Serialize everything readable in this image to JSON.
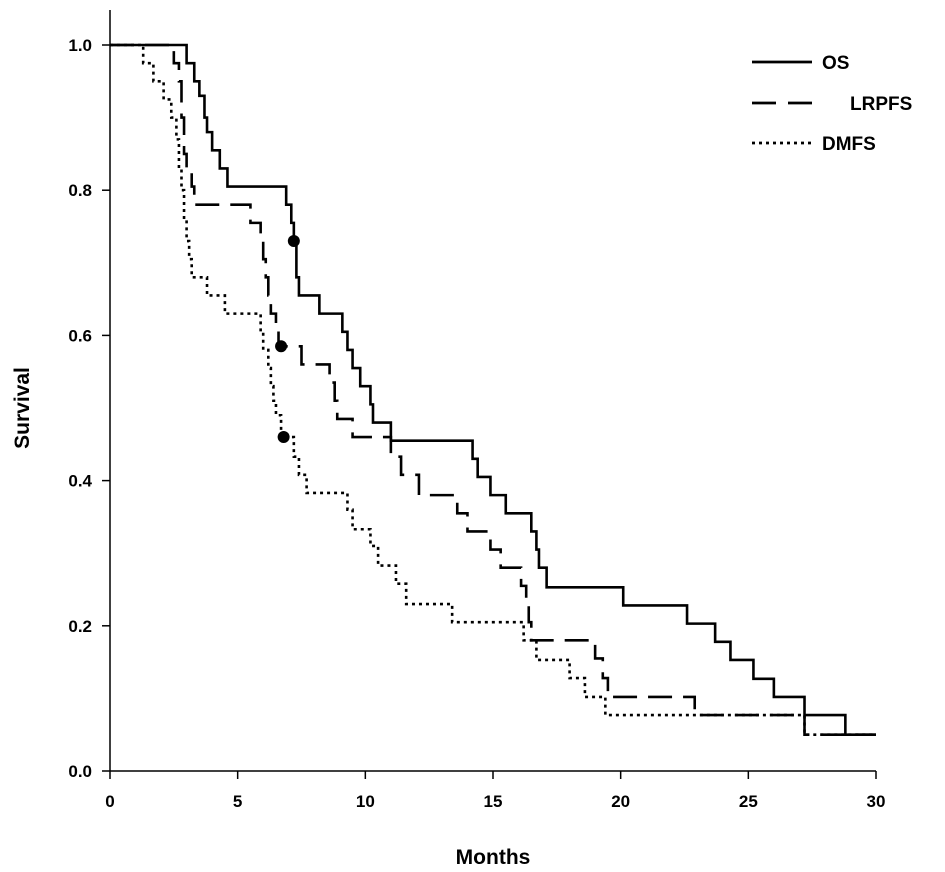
{
  "chart_data": {
    "type": "line",
    "subtype": "kaplan-meier step",
    "title": "",
    "xlabel": "Months",
    "ylabel": "Survival",
    "xlim": [
      0,
      30
    ],
    "ylim": [
      0,
      1
    ],
    "x_ticks": [
      "0",
      "5",
      "10",
      "15",
      "20",
      "25",
      "30"
    ],
    "y_ticks": [
      "0.0",
      "0.2",
      "0.4",
      "0.6",
      "0.8",
      "1.0"
    ],
    "grid": false,
    "legend_position": "top-right",
    "series": [
      {
        "name": "OS",
        "style": "solid",
        "color": "#000000",
        "points": [
          [
            0,
            1.0
          ],
          [
            3.0,
            0.975
          ],
          [
            3.3,
            0.95
          ],
          [
            3.5,
            0.93
          ],
          [
            3.7,
            0.9
          ],
          [
            3.8,
            0.88
          ],
          [
            4.0,
            0.855
          ],
          [
            4.3,
            0.83
          ],
          [
            4.6,
            0.805
          ],
          [
            6.9,
            0.78
          ],
          [
            7.1,
            0.755
          ],
          [
            7.2,
            0.73
          ],
          [
            7.3,
            0.68
          ],
          [
            7.4,
            0.655
          ],
          [
            8.2,
            0.63
          ],
          [
            9.1,
            0.605
          ],
          [
            9.3,
            0.58
          ],
          [
            9.5,
            0.555
          ],
          [
            9.8,
            0.53
          ],
          [
            10.2,
            0.505
          ],
          [
            10.3,
            0.48
          ],
          [
            11.0,
            0.455
          ],
          [
            14.2,
            0.43
          ],
          [
            14.4,
            0.405
          ],
          [
            14.9,
            0.38
          ],
          [
            15.5,
            0.355
          ],
          [
            16.5,
            0.33
          ],
          [
            16.7,
            0.305
          ],
          [
            16.8,
            0.28
          ],
          [
            17.1,
            0.253
          ],
          [
            20.1,
            0.228
          ],
          [
            22.6,
            0.203
          ],
          [
            23.7,
            0.178
          ],
          [
            24.3,
            0.153
          ],
          [
            25.2,
            0.127
          ],
          [
            26.0,
            0.102
          ],
          [
            27.2,
            0.077
          ],
          [
            28.8,
            0.05
          ],
          [
            30.0,
            0.05
          ]
        ],
        "censored": [
          [
            7.2,
            0.73
          ]
        ]
      },
      {
        "name": "LRPFS",
        "style": "dashed",
        "color": "#000000",
        "points": [
          [
            0,
            1.0
          ],
          [
            2.5,
            0.975
          ],
          [
            2.7,
            0.95
          ],
          [
            2.8,
            0.9
          ],
          [
            2.9,
            0.85
          ],
          [
            3.0,
            0.83
          ],
          [
            3.2,
            0.805
          ],
          [
            3.3,
            0.78
          ],
          [
            5.5,
            0.755
          ],
          [
            5.9,
            0.73
          ],
          [
            6.0,
            0.705
          ],
          [
            6.1,
            0.68
          ],
          [
            6.2,
            0.655
          ],
          [
            6.3,
            0.63
          ],
          [
            6.5,
            0.61
          ],
          [
            6.6,
            0.585
          ],
          [
            7.5,
            0.56
          ],
          [
            8.6,
            0.535
          ],
          [
            8.8,
            0.51
          ],
          [
            8.9,
            0.485
          ],
          [
            9.5,
            0.46
          ],
          [
            11.0,
            0.433
          ],
          [
            11.4,
            0.408
          ],
          [
            12.1,
            0.38
          ],
          [
            13.6,
            0.355
          ],
          [
            14.0,
            0.33
          ],
          [
            14.9,
            0.305
          ],
          [
            15.3,
            0.28
          ],
          [
            16.1,
            0.255
          ],
          [
            16.3,
            0.23
          ],
          [
            16.4,
            0.205
          ],
          [
            16.5,
            0.18
          ],
          [
            19.0,
            0.155
          ],
          [
            19.3,
            0.128
          ],
          [
            19.5,
            0.102
          ],
          [
            22.9,
            0.077
          ],
          [
            27.2,
            0.05
          ],
          [
            30.0,
            0.05
          ]
        ],
        "censored": [
          [
            6.7,
            0.585
          ]
        ]
      },
      {
        "name": "DMFS",
        "style": "dotted",
        "color": "#000000",
        "points": [
          [
            0,
            1.0
          ],
          [
            1.3,
            0.975
          ],
          [
            1.7,
            0.95
          ],
          [
            2.1,
            0.925
          ],
          [
            2.4,
            0.9
          ],
          [
            2.6,
            0.87
          ],
          [
            2.7,
            0.83
          ],
          [
            2.8,
            0.8
          ],
          [
            2.9,
            0.76
          ],
          [
            3.0,
            0.73
          ],
          [
            3.1,
            0.705
          ],
          [
            3.2,
            0.68
          ],
          [
            3.8,
            0.655
          ],
          [
            4.5,
            0.63
          ],
          [
            5.9,
            0.605
          ],
          [
            6.0,
            0.58
          ],
          [
            6.2,
            0.555
          ],
          [
            6.3,
            0.53
          ],
          [
            6.4,
            0.51
          ],
          [
            6.5,
            0.49
          ],
          [
            6.7,
            0.46
          ],
          [
            7.2,
            0.433
          ],
          [
            7.4,
            0.408
          ],
          [
            7.7,
            0.383
          ],
          [
            9.3,
            0.36
          ],
          [
            9.5,
            0.333
          ],
          [
            10.2,
            0.31
          ],
          [
            10.5,
            0.283
          ],
          [
            11.2,
            0.258
          ],
          [
            11.6,
            0.23
          ],
          [
            13.4,
            0.205
          ],
          [
            16.2,
            0.18
          ],
          [
            16.7,
            0.153
          ],
          [
            18.0,
            0.128
          ],
          [
            18.6,
            0.102
          ],
          [
            19.4,
            0.077
          ],
          [
            27.2,
            0.05
          ],
          [
            30.0,
            0.05
          ]
        ],
        "censored": [
          [
            6.8,
            0.46
          ]
        ]
      }
    ]
  }
}
